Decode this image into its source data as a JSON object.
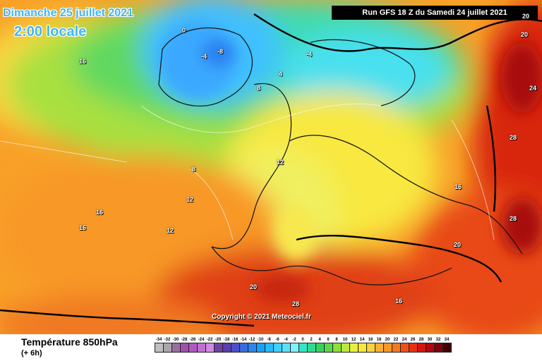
{
  "header": {
    "date": "Dimanche 25 juillet 2021",
    "time": "2:00 locale",
    "run": "Run GFS 18 Z du Samedi 24 juillet 2021"
  },
  "map": {
    "copyright": "Copyright © 2021 Meteociel.fr",
    "labels": [
      "20",
      "24",
      "28",
      "0",
      "-4",
      "-8",
      "4",
      "8",
      "12",
      "16"
    ]
  },
  "footer": {
    "title": "Température 850hPa",
    "subtitle": "(+ 6h)"
  },
  "scale": {
    "ticks": [
      "-34",
      "-32",
      "-30",
      "-28",
      "-26",
      "-24",
      "-22",
      "-20",
      "-18",
      "-16",
      "-14",
      "-12",
      "-10",
      "-8",
      "-6",
      "-4",
      "-2",
      "0",
      "2",
      "4",
      "6",
      "8",
      "10",
      "12",
      "14",
      "16",
      "18",
      "20",
      "22",
      "24",
      "26",
      "28",
      "30",
      "32",
      "34"
    ],
    "colors": [
      "#bfbfbf",
      "#a8a8a8",
      "#9a6fa0",
      "#a04fb0",
      "#b05ac0",
      "#c070d0",
      "#d08ae0",
      "#6f3fa8",
      "#5a3fb0",
      "#4a50c8",
      "#3a6ae0",
      "#2a86f0",
      "#1aa0f8",
      "#2ab8ff",
      "#3fd0ff",
      "#5ae0ff",
      "#7ff0ff",
      "#2ee8c8",
      "#2edc90",
      "#3ad060",
      "#5ad84a",
      "#8ce03a",
      "#bce83a",
      "#e8f03a",
      "#f8e83a",
      "#fcd040",
      "#fcb030",
      "#f89828",
      "#f47820",
      "#f05018",
      "#e83010",
      "#d01810",
      "#b00810",
      "#800010",
      "#400008"
    ]
  }
}
